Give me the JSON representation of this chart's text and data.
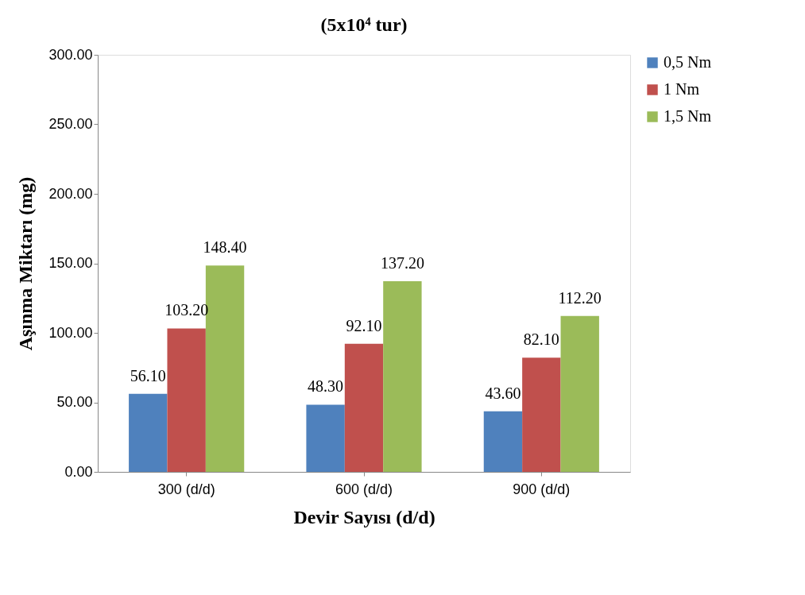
{
  "chart_data": {
    "type": "bar",
    "title": "(5x10⁴ tur)",
    "xlabel": "Devir Sayısı (d/d)",
    "ylabel": "Aşınma Miktarı (mg)",
    "categories": [
      "300 (d/d)",
      "600 (d/d)",
      "900 (d/d)"
    ],
    "series": [
      {
        "name": "0,5 Nm",
        "color": "#4f81bd",
        "values": [
          56.1,
          48.3,
          43.6
        ],
        "value_labels": [
          "56.10",
          "48.30",
          "43.60"
        ]
      },
      {
        "name": "1 Nm",
        "color": "#c0504d",
        "values": [
          103.2,
          92.1,
          82.1
        ],
        "value_labels": [
          "103.20",
          "92.10",
          "82.10"
        ]
      },
      {
        "name": "1,5 Nm",
        "color": "#9bbb59",
        "values": [
          148.4,
          137.2,
          112.2
        ],
        "value_labels": [
          "148.40",
          "137.20",
          "112.20"
        ]
      }
    ],
    "ylim": [
      0,
      300
    ],
    "yticks": [
      {
        "value": 0,
        "label": "0.00"
      },
      {
        "value": 50,
        "label": "50.00"
      },
      {
        "value": 100,
        "label": "100.00"
      },
      {
        "value": 150,
        "label": "150.00"
      },
      {
        "value": 200,
        "label": "200.00"
      },
      {
        "value": 250,
        "label": "250.00"
      },
      {
        "value": 300,
        "label": "300.00"
      }
    ],
    "grid": false,
    "legend": "right"
  }
}
